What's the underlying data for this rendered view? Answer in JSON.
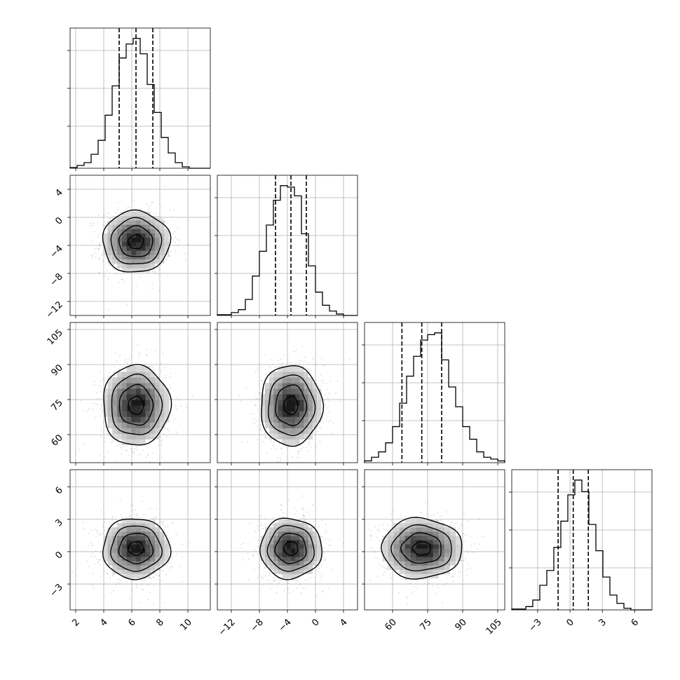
{
  "chart_data": {
    "type": "corner",
    "title": "",
    "grid": true,
    "parameters": [
      {
        "name": "",
        "range": [
          1.6,
          11.6
        ],
        "tick_values": [
          2,
          4,
          6,
          8,
          10
        ],
        "tick_labels": [
          "2",
          "4",
          "6",
          "8",
          "10"
        ],
        "mean": 6.3,
        "sd": 1.2,
        "quantiles": [
          5.1,
          6.3,
          7.5
        ]
      },
      {
        "name": "",
        "range": [
          -14,
          6
        ],
        "tick_values": [
          -12,
          -8,
          -4,
          0,
          4
        ],
        "tick_labels": [
          "−12",
          "−8",
          "−4",
          "0",
          "4"
        ],
        "mean": -3.5,
        "sd": 2.2,
        "quantiles": [
          -5.7,
          -3.5,
          -1.3
        ]
      },
      {
        "name": "",
        "range": [
          48,
          108
        ],
        "tick_values": [
          60,
          75,
          90,
          105
        ],
        "tick_labels": [
          "60",
          "75",
          "90",
          "105"
        ],
        "mean": 72.5,
        "sd": 8.6,
        "quantiles": [
          64,
          72.5,
          81
        ]
      },
      {
        "name": "",
        "range": [
          -5.4,
          7.6
        ],
        "tick_values": [
          -3,
          0,
          3,
          6
        ],
        "tick_labels": [
          "−3",
          "0",
          "3",
          "6"
        ],
        "mean": 0.3,
        "sd": 1.4,
        "quantiles": [
          -1.1,
          0.3,
          1.7
        ]
      }
    ],
    "histograms": [
      {
        "param": 0,
        "bin_edges": [
          1.6,
          2.1,
          2.6,
          3.1,
          3.6,
          4.1,
          4.6,
          5.1,
          5.6,
          6.1,
          6.6,
          7.1,
          7.6,
          8.1,
          8.6,
          9.1,
          9.6,
          10.1,
          10.6,
          11.1,
          11.6
        ],
        "counts": [
          0.5,
          2,
          4,
          10,
          20,
          38,
          59,
          79,
          89,
          93,
          82,
          60,
          40,
          22,
          11,
          4,
          1,
          0,
          0,
          0
        ]
      },
      {
        "param": 1,
        "bin_edges": [
          -14,
          -13,
          -12,
          -11,
          -10,
          -9,
          -8,
          -7,
          -6,
          -5,
          -4,
          -3,
          -2,
          -1,
          0,
          1,
          2,
          3,
          4,
          5,
          6
        ],
        "counts": [
          0.5,
          0.5,
          2,
          4,
          11,
          27,
          44,
          62,
          79,
          89,
          88,
          82,
          56,
          34,
          16,
          7,
          3,
          1,
          0,
          0
        ]
      },
      {
        "param": 2,
        "bin_edges": [
          48,
          51,
          54,
          57,
          60,
          63,
          66,
          69,
          72,
          75,
          78,
          81,
          84,
          87,
          90,
          93,
          96,
          99,
          102,
          105,
          108
        ],
        "counts": [
          1,
          3,
          6,
          11,
          20,
          33,
          48,
          59,
          68,
          71,
          72,
          57,
          42,
          31,
          20,
          13,
          6,
          3,
          2,
          1
        ]
      },
      {
        "param": 3,
        "bin_edges": [
          -5.4,
          -4.75,
          -4.1,
          -3.45,
          -2.8,
          -2.15,
          -1.5,
          -0.85,
          -0.2,
          0.45,
          1.1,
          1.75,
          2.4,
          3.05,
          3.7,
          4.35,
          5,
          5.65,
          6.3,
          6.95,
          7.6
        ],
        "counts": [
          0.5,
          0.5,
          2,
          6,
          15,
          24,
          38,
          54,
          70,
          79,
          72,
          52,
          36,
          20,
          9,
          4,
          1,
          0,
          0,
          0
        ]
      }
    ],
    "panels": [
      {
        "row": 1,
        "col": 0,
        "contours": [
          [
            6.3,
            -3.5
          ],
          [
            6.2,
            -3.6
          ],
          [
            5.9,
            -3.4
          ]
        ]
      },
      {
        "row": 2,
        "col": 0,
        "contours": [
          [
            6.3,
            72.5
          ],
          [
            6.1,
            72
          ],
          [
            6.2,
            73
          ]
        ]
      },
      {
        "row": 2,
        "col": 1,
        "contours": [
          [
            -3.5,
            72.5
          ],
          [
            -3.7,
            73
          ],
          [
            -3.3,
            72
          ]
        ]
      },
      {
        "row": 3,
        "col": 0,
        "contours": [
          [
            6.3,
            0.3
          ],
          [
            6.2,
            0.2
          ],
          [
            6.1,
            0.4
          ]
        ]
      },
      {
        "row": 3,
        "col": 1,
        "contours": [
          [
            -3.5,
            0.3
          ],
          [
            -3.4,
            0.2
          ],
          [
            -3.6,
            0.4
          ]
        ]
      },
      {
        "row": 3,
        "col": 2,
        "contours": [
          [
            72.5,
            0.3
          ],
          [
            73,
            0.4
          ],
          [
            72,
            0.2
          ]
        ]
      }
    ]
  }
}
